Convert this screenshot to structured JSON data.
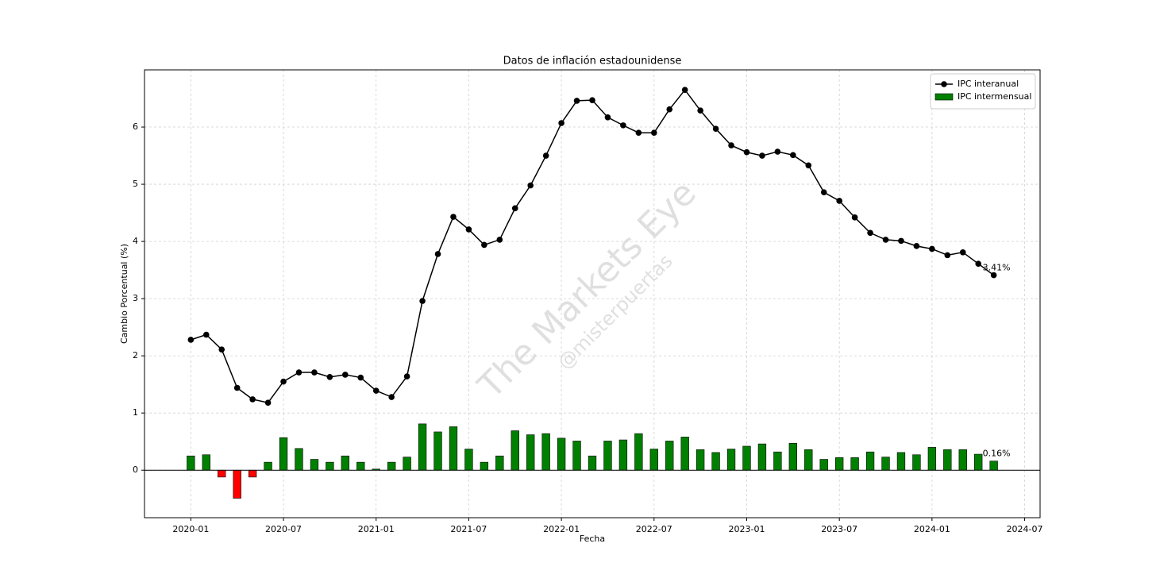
{
  "chart_data": {
    "type": "bar-line",
    "title": "Datos de inflación estadounidense",
    "xlabel": "Fecha",
    "ylabel": "Cambio Porcentual (%)",
    "watermark": [
      "The Markets Eye",
      "@misterpuertas"
    ],
    "x": [
      "2020-01",
      "2020-02",
      "2020-03",
      "2020-04",
      "2020-05",
      "2020-06",
      "2020-07",
      "2020-08",
      "2020-09",
      "2020-10",
      "2020-11",
      "2020-12",
      "2021-01",
      "2021-02",
      "2021-03",
      "2021-04",
      "2021-05",
      "2021-06",
      "2021-07",
      "2021-08",
      "2021-09",
      "2021-10",
      "2021-11",
      "2021-12",
      "2022-01",
      "2022-02",
      "2022-03",
      "2022-04",
      "2022-05",
      "2022-06",
      "2022-07",
      "2022-08",
      "2022-09",
      "2022-10",
      "2022-11",
      "2022-12",
      "2023-01",
      "2023-02",
      "2023-03",
      "2023-04",
      "2023-05",
      "2023-06",
      "2023-07",
      "2023-08",
      "2023-09",
      "2023-10",
      "2023-11",
      "2023-12",
      "2024-01",
      "2024-02",
      "2024-03",
      "2024-04",
      "2024-05"
    ],
    "series": [
      {
        "name": "IPC interanual",
        "kind": "line",
        "color": "#000000",
        "values": [
          2.28,
          2.37,
          2.11,
          1.44,
          1.24,
          1.18,
          1.55,
          1.71,
          1.71,
          1.63,
          1.67,
          1.62,
          1.39,
          1.28,
          1.64,
          2.96,
          3.78,
          4.43,
          4.21,
          3.94,
          4.03,
          4.58,
          4.98,
          5.5,
          6.07,
          6.46,
          6.47,
          6.17,
          6.03,
          5.9,
          5.9,
          6.31,
          6.65,
          6.29,
          5.97,
          5.68,
          5.56,
          5.5,
          5.57,
          5.51,
          5.33,
          4.86,
          4.71,
          4.42,
          4.15,
          4.03,
          4.01,
          3.92,
          3.87,
          3.76,
          3.81,
          3.61,
          3.41
        ],
        "value_labels": [
          null,
          null,
          null,
          null,
          null,
          null,
          null,
          null,
          null,
          null,
          null,
          null,
          null,
          null,
          null,
          null,
          null,
          null,
          null,
          null,
          null,
          null,
          null,
          null,
          null,
          null,
          null,
          null,
          null,
          null,
          null,
          null,
          null,
          null,
          null,
          null,
          null,
          null,
          null,
          null,
          null,
          null,
          null,
          null,
          null,
          null,
          null,
          null,
          null,
          null,
          null,
          null,
          "3.41%"
        ]
      },
      {
        "name": "IPC intermensual",
        "kind": "bar",
        "color": "#008000",
        "negative_color": "#ff0000",
        "values": [
          0.25,
          0.27,
          -0.12,
          -0.49,
          -0.12,
          0.14,
          0.57,
          0.38,
          0.19,
          0.14,
          0.25,
          0.14,
          0.02,
          0.14,
          0.23,
          0.81,
          0.67,
          0.76,
          0.37,
          0.14,
          0.25,
          0.69,
          0.62,
          0.64,
          0.56,
          0.51,
          0.25,
          0.51,
          0.53,
          0.64,
          0.37,
          0.51,
          0.58,
          0.36,
          0.31,
          0.37,
          0.42,
          0.46,
          0.32,
          0.47,
          0.36,
          0.19,
          0.22,
          0.22,
          0.32,
          0.23,
          0.31,
          0.27,
          0.4,
          0.36,
          0.36,
          0.28,
          0.16
        ],
        "value_labels": [
          null,
          null,
          null,
          null,
          null,
          null,
          null,
          null,
          null,
          null,
          null,
          null,
          null,
          null,
          null,
          null,
          null,
          null,
          null,
          null,
          null,
          null,
          null,
          null,
          null,
          null,
          null,
          null,
          null,
          null,
          null,
          null,
          null,
          null,
          null,
          null,
          null,
          null,
          null,
          null,
          null,
          null,
          null,
          null,
          null,
          null,
          null,
          null,
          null,
          null,
          null,
          null,
          "0.16%"
        ]
      }
    ],
    "xlim": [
      "2019-10",
      "2024-08"
    ],
    "xticks": [
      "2020-01",
      "2020-07",
      "2021-01",
      "2021-07",
      "2022-01",
      "2022-07",
      "2023-01",
      "2023-07",
      "2024-01",
      "2024-07"
    ],
    "ylim": [
      -0.83,
      7.0
    ],
    "yticks": [
      0,
      1,
      2,
      3,
      4,
      5,
      6
    ],
    "grid": true,
    "legend": "upper right"
  }
}
